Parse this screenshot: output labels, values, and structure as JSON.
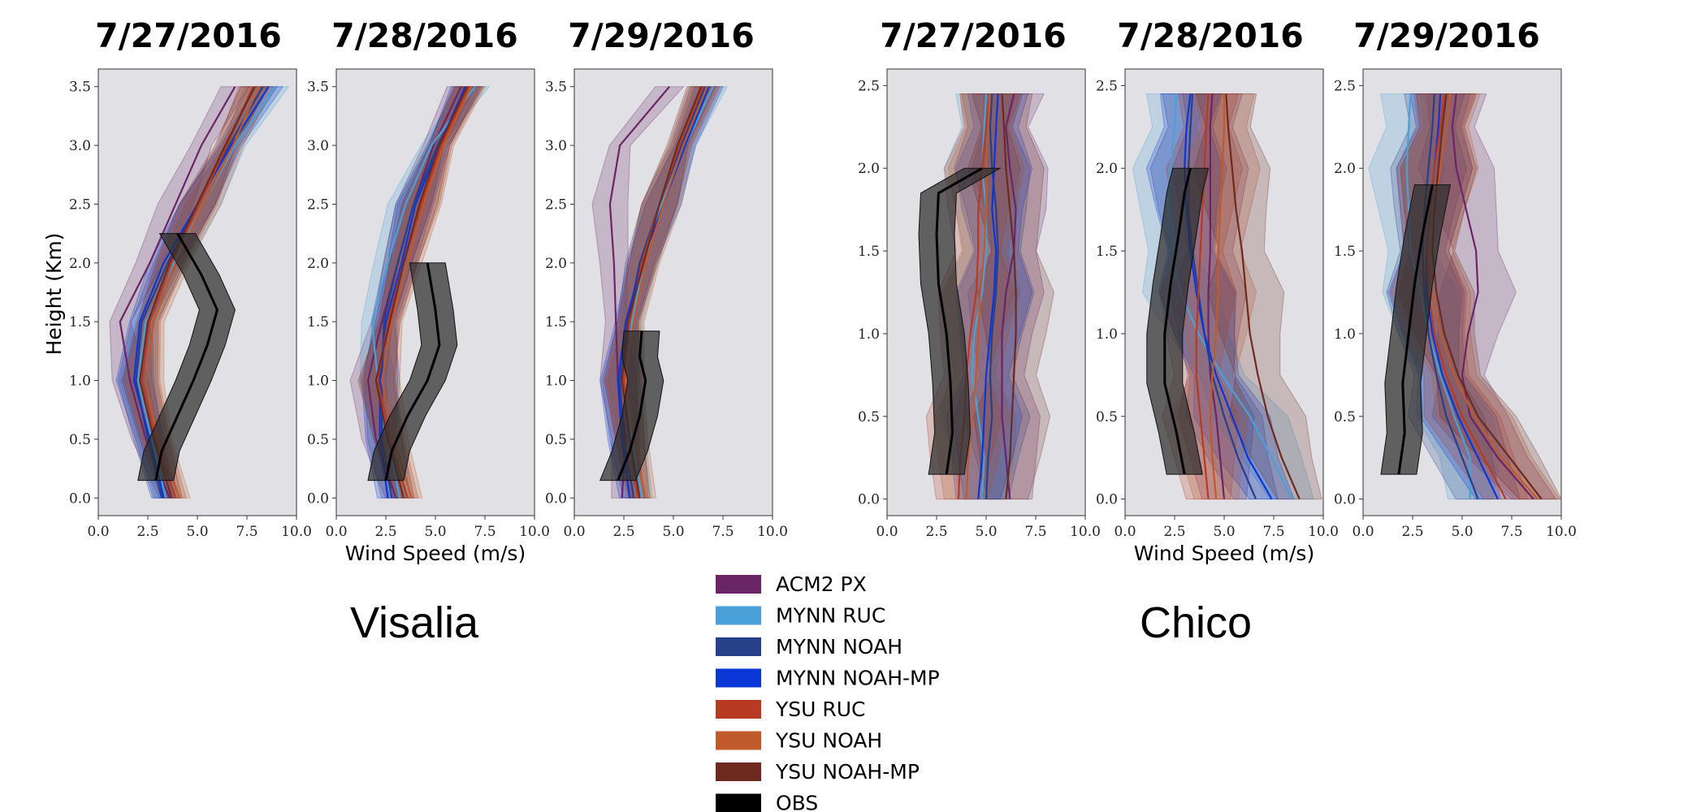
{
  "chart_data": {
    "type": "line",
    "description_units": "x: wind speed (m/s), y: height (Km)",
    "xlabel": "Wind Speed (m/s)",
    "ylabel": "Height (Km)",
    "xticks": [
      "0.0",
      "2.5",
      "5.0",
      "7.5",
      "10.0"
    ],
    "xlim": [
      0,
      10
    ],
    "legend": [
      {
        "name": "ACM2 PX",
        "color": "#6a2566"
      },
      {
        "name": "MYNN RUC",
        "color": "#4aa0d8"
      },
      {
        "name": "MYNN NOAH",
        "color": "#26408a"
      },
      {
        "name": "MYNN NOAH-MP",
        "color": "#0a36d8"
      },
      {
        "name": "YSU RUC",
        "color": "#b83a22"
      },
      {
        "name": "YSU NOAH",
        "color": "#c05a2a"
      },
      {
        "name": "YSU NOAH-MP",
        "color": "#6e2a1e"
      },
      {
        "name": "OBS",
        "color": "#000000"
      }
    ],
    "sites": [
      {
        "name": "Visalia",
        "ylim": [
          -0.15,
          3.65
        ],
        "yticks": [
          "0.0",
          "0.5",
          "1.0",
          "1.5",
          "2.0",
          "2.5",
          "3.0",
          "3.5"
        ],
        "heights": [
          0.0,
          0.5,
          1.0,
          1.5,
          2.0,
          2.5,
          3.0,
          3.5
        ],
        "panels": [
          {
            "date": "7/27/2016",
            "models": [
              {
                "name": "ACM2 PX",
                "speeds": [
                  3.6,
                  2.4,
                  1.6,
                  1.1,
                  2.6,
                  3.9,
                  5.2,
                  6.9
                ]
              },
              {
                "name": "MYNN RUC",
                "speeds": [
                  3.4,
                  2.7,
                  2.0,
                  2.4,
                  3.8,
                  5.3,
                  6.9,
                  8.9
                ]
              },
              {
                "name": "MYNN NOAH",
                "speeds": [
                  3.2,
                  2.5,
                  1.9,
                  2.2,
                  3.5,
                  5.0,
                  6.6,
                  8.3
                ]
              },
              {
                "name": "MYNN NOAH-MP",
                "speeds": [
                  3.3,
                  2.6,
                  1.8,
                  2.1,
                  3.3,
                  5.0,
                  6.7,
                  8.6
                ]
              },
              {
                "name": "YSU RUC",
                "speeds": [
                  3.9,
                  2.9,
                  2.2,
                  2.6,
                  3.7,
                  5.1,
                  6.5,
                  7.8
                ]
              },
              {
                "name": "YSU NOAH",
                "speeds": [
                  4.1,
                  3.0,
                  2.4,
                  2.8,
                  3.9,
                  5.3,
                  6.8,
                  8.1
                ]
              },
              {
                "name": "YSU NOAH-MP",
                "speeds": [
                  3.7,
                  2.8,
                  2.1,
                  2.5,
                  3.6,
                  5.0,
                  6.4,
                  7.9
                ]
              }
            ],
            "obs": {
              "heights": [
                0.15,
                0.4,
                0.7,
                1.0,
                1.3,
                1.6,
                1.9,
                2.25
              ],
              "speeds": [
                2.9,
                3.2,
                4.0,
                4.8,
                5.5,
                6.0,
                5.2,
                4.0
              ]
            }
          },
          {
            "date": "7/28/2016",
            "models": [
              {
                "name": "ACM2 PX",
                "speeds": [
                  3.0,
                  2.0,
                  1.6,
                  2.3,
                  3.1,
                  3.9,
                  4.9,
                  6.3
                ]
              },
              {
                "name": "MYNN RUC",
                "speeds": [
                  3.2,
                  2.6,
                  2.1,
                  1.8,
                  2.6,
                  3.5,
                  4.8,
                  7.0
                ]
              },
              {
                "name": "MYNN NOAH",
                "speeds": [
                  2.8,
                  2.3,
                  2.3,
                  2.4,
                  3.1,
                  3.9,
                  5.1,
                  6.7
                ]
              },
              {
                "name": "MYNN NOAH-MP",
                "speeds": [
                  2.6,
                  2.2,
                  2.2,
                  2.5,
                  3.3,
                  4.0,
                  5.2,
                  6.5
                ]
              },
              {
                "name": "YSU RUC",
                "speeds": [
                  3.6,
                  2.7,
                  2.1,
                  2.6,
                  3.4,
                  4.3,
                  5.3,
                  6.7
                ]
              },
              {
                "name": "YSU NOAH",
                "speeds": [
                  3.8,
                  2.9,
                  2.3,
                  2.8,
                  3.6,
                  4.4,
                  5.4,
                  6.8
                ]
              },
              {
                "name": "YSU NOAH-MP",
                "speeds": [
                  3.4,
                  2.6,
                  2.0,
                  2.7,
                  3.4,
                  4.2,
                  5.2,
                  6.6
                ]
              }
            ],
            "obs": {
              "heights": [
                0.15,
                0.4,
                0.7,
                1.0,
                1.3,
                1.6,
                2.0
              ],
              "speeds": [
                2.5,
                2.8,
                3.6,
                4.6,
                5.2,
                5.0,
                4.6
              ]
            }
          },
          {
            "date": "7/29/2016",
            "models": [
              {
                "name": "ACM2 PX",
                "speeds": [
                  2.4,
                  2.6,
                  2.2,
                  2.1,
                  2.0,
                  1.8,
                  2.3,
                  4.8
                ]
              },
              {
                "name": "MYNN RUC",
                "speeds": [
                  3.4,
                  2.9,
                  2.6,
                  2.9,
                  3.5,
                  4.4,
                  5.6,
                  7.0
                ]
              },
              {
                "name": "MYNN NOAH",
                "speeds": [
                  3.0,
                  2.5,
                  2.3,
                  2.7,
                  3.3,
                  4.3,
                  5.4,
                  6.6
                ]
              },
              {
                "name": "MYNN NOAH-MP",
                "speeds": [
                  2.8,
                  2.4,
                  2.2,
                  2.6,
                  3.4,
                  4.5,
                  5.6,
                  6.8
                ]
              },
              {
                "name": "YSU RUC",
                "speeds": [
                  3.2,
                  2.8,
                  2.5,
                  2.8,
                  3.4,
                  4.3,
                  5.3,
                  6.5
                ]
              },
              {
                "name": "YSU NOAH",
                "speeds": [
                  3.6,
                  3.0,
                  2.6,
                  3.0,
                  3.6,
                  4.5,
                  5.5,
                  6.7
                ]
              },
              {
                "name": "YSU NOAH-MP",
                "speeds": [
                  3.3,
                  2.8,
                  2.4,
                  2.7,
                  3.5,
                  4.3,
                  5.2,
                  6.4
                ]
              }
            ],
            "obs": {
              "heights": [
                0.15,
                0.4,
                0.7,
                1.0,
                1.2,
                1.42
              ],
              "speeds": [
                2.2,
                2.8,
                3.3,
                3.6,
                3.3,
                3.4
              ]
            }
          }
        ]
      },
      {
        "name": "Chico",
        "ylim": [
          -0.1,
          2.6
        ],
        "yticks": [
          "0.0",
          "0.5",
          "1.0",
          "1.5",
          "2.0",
          "2.5"
        ],
        "heights": [
          0.0,
          0.25,
          0.5,
          0.75,
          1.0,
          1.25,
          1.5,
          1.75,
          2.0,
          2.25,
          2.45
        ],
        "panels": [
          {
            "date": "7/27/2016",
            "models": [
              {
                "name": "ACM2 PX",
                "speeds": [
                  6.2,
                  6.0,
                  5.8,
                  5.8,
                  5.8,
                  6.0,
                  6.4,
                  6.5,
                  6.2,
                  6.0,
                  6.4
                ]
              },
              {
                "name": "MYNN RUC",
                "speeds": [
                  4.8,
                  4.9,
                  4.6,
                  4.3,
                  4.4,
                  4.8,
                  5.0,
                  5.0,
                  4.8,
                  4.9,
                  5.0
                ]
              },
              {
                "name": "MYNN NOAH",
                "speeds": [
                  5.0,
                  5.1,
                  5.3,
                  5.2,
                  5.3,
                  5.5,
                  5.6,
                  5.5,
                  5.3,
                  5.2,
                  5.3
                ]
              },
              {
                "name": "MYNN NOAH-MP",
                "speeds": [
                  4.6,
                  4.8,
                  4.9,
                  5.0,
                  5.2,
                  5.4,
                  5.5,
                  5.3,
                  5.4,
                  5.5,
                  5.6
                ]
              },
              {
                "name": "YSU RUC",
                "speeds": [
                  3.6,
                  3.7,
                  3.9,
                  4.0,
                  4.2,
                  4.5,
                  4.6,
                  4.6,
                  4.8,
                  5.0,
                  5.2
                ]
              },
              {
                "name": "YSU NOAH",
                "speeds": [
                  4.0,
                  4.1,
                  4.3,
                  4.5,
                  4.6,
                  4.7,
                  4.9,
                  5.0,
                  5.0,
                  5.1,
                  5.2
                ]
              },
              {
                "name": "YSU NOAH-MP",
                "speeds": [
                  6.0,
                  6.2,
                  6.3,
                  6.4,
                  6.5,
                  6.5,
                  6.4,
                  6.2,
                  6.0,
                  5.9,
                  5.8
                ]
              }
            ],
            "obs": {
              "heights": [
                0.15,
                0.4,
                0.7,
                1.0,
                1.3,
                1.6,
                1.85,
                2.0
              ],
              "speeds": [
                3.0,
                3.3,
                3.2,
                3.0,
                2.6,
                2.5,
                2.6,
                4.8
              ]
            }
          },
          {
            "date": "7/28/2016",
            "models": [
              {
                "name": "ACM2 PX",
                "speeds": [
                  5.0,
                  4.8,
                  4.6,
                  4.3,
                  4.2,
                  4.2,
                  4.3,
                  4.3,
                  4.3,
                  4.3,
                  4.4
                ]
              },
              {
                "name": "MYNN RUC",
                "speeds": [
                  8.4,
                  7.4,
                  6.3,
                  4.9,
                  3.7,
                  2.8,
                  2.3,
                  2.3,
                  2.3,
                  2.5,
                  2.6
                ]
              },
              {
                "name": "MYNN NOAH",
                "speeds": [
                  6.6,
                  5.7,
                  5.0,
                  4.4,
                  4.0,
                  3.7,
                  3.4,
                  3.2,
                  3.2,
                  3.3,
                  3.4
                ]
              },
              {
                "name": "MYNN NOAH-MP",
                "speeds": [
                  7.4,
                  6.2,
                  5.4,
                  4.6,
                  4.0,
                  3.6,
                  3.3,
                  3.1,
                  3.0,
                  3.1,
                  3.3
                ]
              },
              {
                "name": "YSU RUC",
                "speeds": [
                  4.2,
                  4.0,
                  3.8,
                  3.6,
                  3.6,
                  3.7,
                  3.8,
                  3.9,
                  4.0,
                  4.1,
                  4.2
                ]
              },
              {
                "name": "YSU NOAH",
                "speeds": [
                  4.6,
                  4.4,
                  4.3,
                  4.4,
                  4.6,
                  4.7,
                  4.7,
                  4.8,
                  4.9,
                  5.0,
                  5.0
                ]
              },
              {
                "name": "YSU NOAH-MP",
                "speeds": [
                  8.8,
                  7.9,
                  7.2,
                  6.7,
                  6.3,
                  6.1,
                  5.9,
                  5.6,
                  5.4,
                  5.2,
                  5.1
                ]
              }
            ],
            "obs": {
              "heights": [
                0.15,
                0.4,
                0.7,
                1.0,
                1.3,
                1.6,
                1.85,
                2.0
              ],
              "speeds": [
                3.0,
                2.6,
                2.0,
                2.0,
                2.3,
                2.7,
                3.0,
                3.3
              ]
            }
          },
          {
            "date": "7/29/2016",
            "models": [
              {
                "name": "ACM2 PX",
                "speeds": [
                  8.6,
                  6.8,
                  5.4,
                  5.0,
                  5.3,
                  5.8,
                  5.7,
                  5.2,
                  4.7,
                  4.5,
                  4.7
                ]
              },
              {
                "name": "MYNN RUC",
                "speeds": [
                  5.4,
                  5.4,
                  4.6,
                  3.9,
                  3.3,
                  2.9,
                  2.4,
                  2.3,
                  2.2,
                  2.3,
                  2.4
                ]
              },
              {
                "name": "MYNN NOAH",
                "speeds": [
                  5.8,
                  5.0,
                  4.2,
                  3.7,
                  3.3,
                  3.1,
                  3.0,
                  3.1,
                  3.3,
                  3.5,
                  3.6
                ]
              },
              {
                "name": "MYNN NOAH-MP",
                "speeds": [
                  6.8,
                  5.8,
                  4.8,
                  4.0,
                  3.5,
                  3.2,
                  3.2,
                  3.4,
                  3.6,
                  3.8,
                  3.9
                ]
              },
              {
                "name": "YSU RUC",
                "speeds": [
                  7.2,
                  6.1,
                  5.0,
                  4.2,
                  3.6,
                  3.3,
                  3.2,
                  3.4,
                  3.6,
                  3.9,
                  4.1
                ]
              },
              {
                "name": "YSU NOAH",
                "speeds": [
                  8.8,
                  7.0,
                  5.6,
                  4.6,
                  3.9,
                  3.5,
                  3.4,
                  3.6,
                  3.9,
                  4.2,
                  4.4
                ]
              },
              {
                "name": "YSU NOAH-MP",
                "speeds": [
                  9.0,
                  7.4,
                  5.8,
                  4.8,
                  4.1,
                  3.7,
                  3.5,
                  3.6,
                  3.8,
                  4.0,
                  4.2
                ]
              }
            ],
            "obs": {
              "heights": [
                0.15,
                0.4,
                0.7,
                1.0,
                1.3,
                1.6,
                1.9
              ],
              "speeds": [
                1.8,
                2.1,
                2.0,
                2.3,
                2.6,
                3.0,
                3.5
              ]
            }
          }
        ]
      }
    ]
  }
}
